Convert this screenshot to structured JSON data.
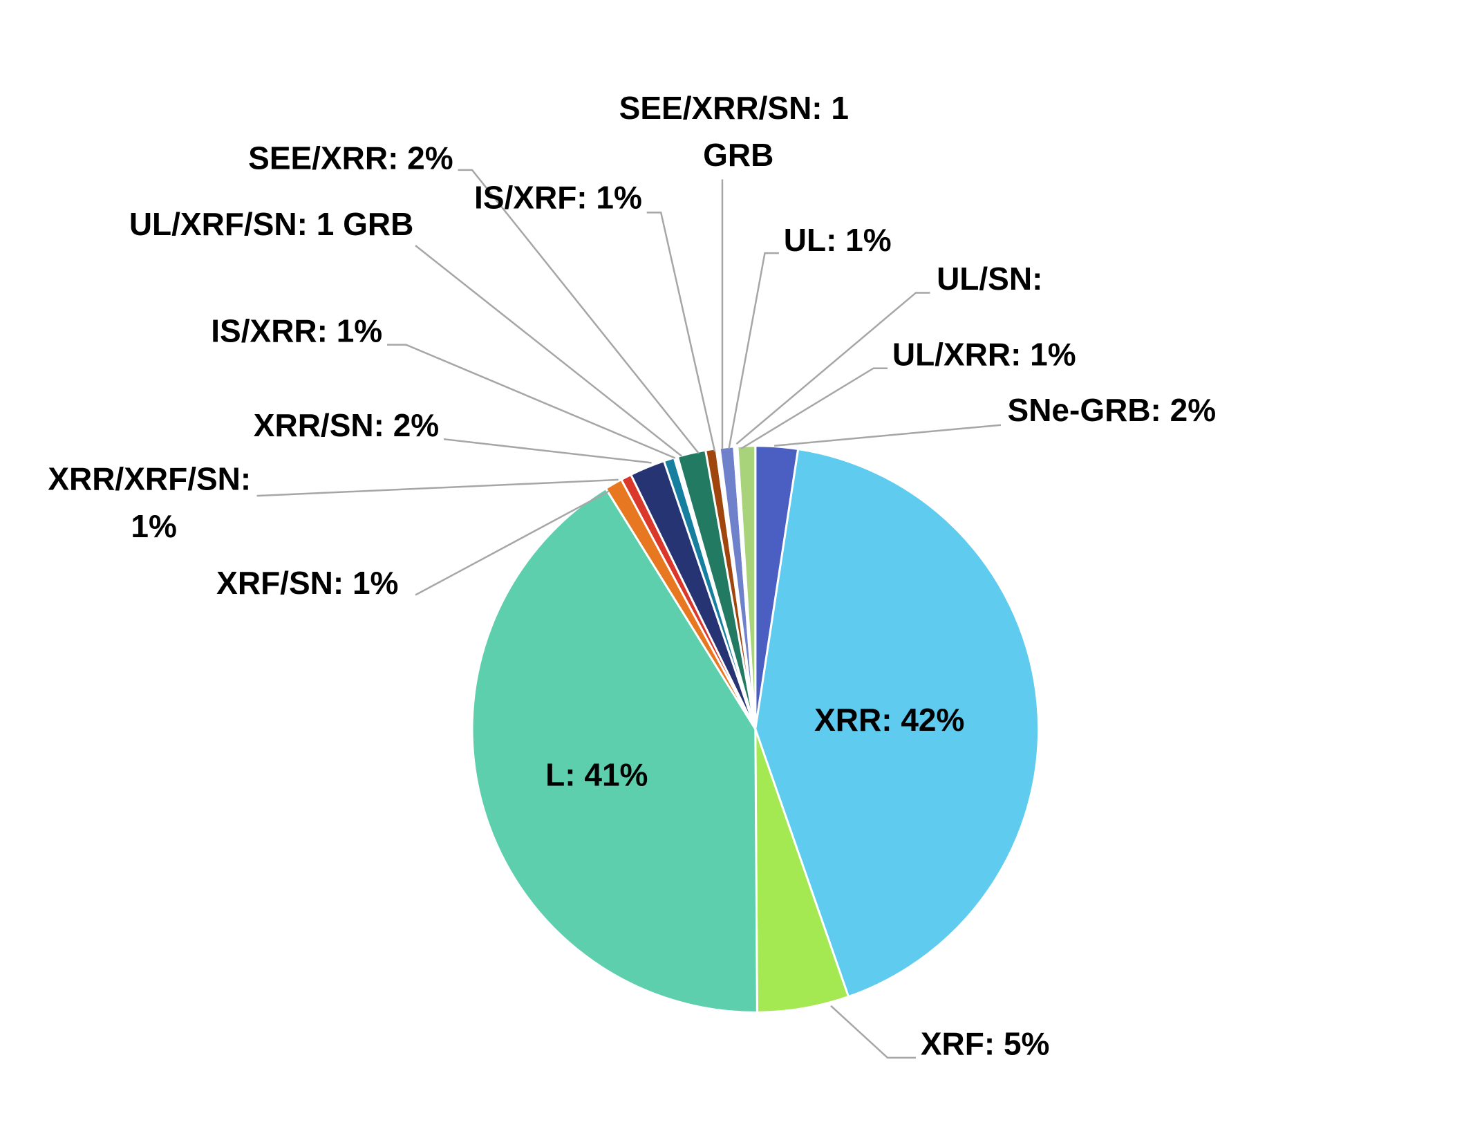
{
  "chart_data": {
    "type": "pie",
    "categories": [
      "SNe-GRB: 2%",
      "XRR: 42%",
      "XRF: 5%",
      "L: 41%",
      "XRF/SN: 1%",
      "XRR/XRF/SN: 1%",
      "XRR/SN: 2%",
      "IS/XRR: 1%",
      "UL/XRF/SN: 1 GRB",
      "SEE/XRR: 2%",
      "IS/XRF: 1%",
      "SEE/XRR/SN: 1 GRB",
      "UL: 1%",
      "UL/SN:",
      "UL/XRR: 1%"
    ],
    "values": [
      2.4,
      42,
      5.2,
      41,
      1,
      0.6,
      2,
      0.6,
      0.2,
      1.6,
      0.6,
      0.2,
      0.8,
      0.2,
      1
    ],
    "colors": [
      "#4a5fc1",
      "#5ecbef",
      "#a4e852",
      "#5ecfad",
      "#e87722",
      "#d9382b",
      "#263473",
      "#167fa0",
      "#ffffff",
      "#237a63",
      "#a0450e",
      "#ffffff",
      "#7081cc",
      "#ffffff",
      "#a9d37a"
    ]
  }
}
